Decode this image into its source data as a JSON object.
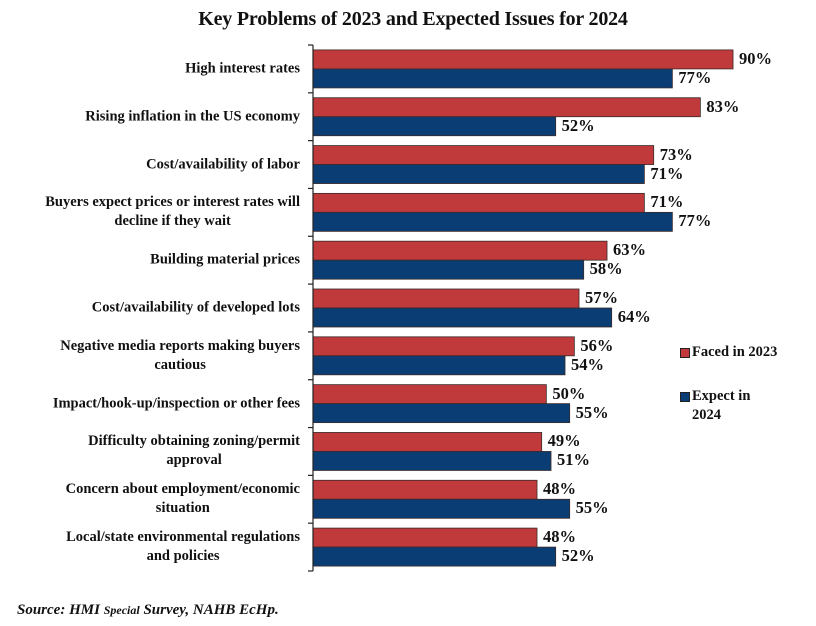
{
  "chart_data": {
    "type": "bar",
    "orientation": "horizontal",
    "title": "Key Problems of 2023 and Expected Issues for 2024",
    "xlabel": "",
    "ylabel": "",
    "xlim": [
      0,
      100
    ],
    "value_format": "percent",
    "grid": false,
    "legend_position": "right",
    "categories": [
      [
        "High interest rates"
      ],
      [
        "Rising inflation in the US economy"
      ],
      [
        "Cost/availability of labor"
      ],
      [
        "Buyers expect prices or interest rates will",
        "decline if they wait"
      ],
      [
        "Building material prices"
      ],
      [
        "Cost/availability of developed lots"
      ],
      [
        "Negative media reports making buyers",
        "cautious"
      ],
      [
        "Impact/hook-up/inspection or other fees"
      ],
      [
        "Difficulty obtaining zoning/permit",
        "approval"
      ],
      [
        "Concern about employment/economic",
        "situation"
      ],
      [
        "Local/state environmental regulations",
        "and policies"
      ]
    ],
    "series": [
      {
        "name": "Faced in 2023",
        "legend_lines": [
          "Faced in 2023"
        ],
        "color": "#C0393B",
        "values": [
          90,
          83,
          73,
          71,
          63,
          57,
          56,
          50,
          49,
          48,
          48
        ]
      },
      {
        "name": "Expect in 2024",
        "legend_lines": [
          "Expect in",
          "2024"
        ],
        "color": "#0B3D75",
        "values": [
          77,
          52,
          71,
          77,
          58,
          64,
          54,
          55,
          51,
          55,
          52
        ]
      }
    ]
  },
  "source": {
    "prefix": "Source: HMI ",
    "small": "Special",
    "suffix": " Survey, NAHB EcHp."
  }
}
